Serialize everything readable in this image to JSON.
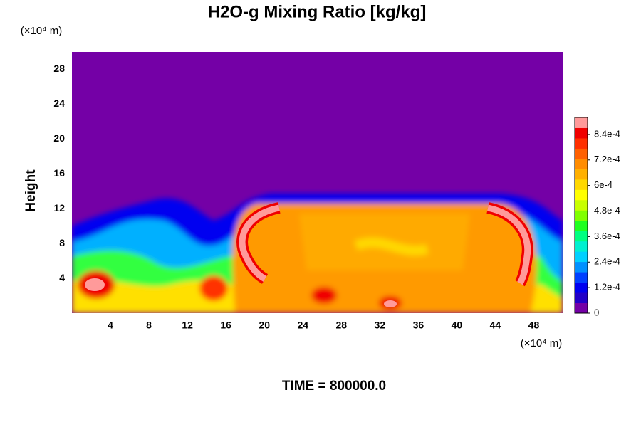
{
  "chart_data": {
    "type": "heatmap",
    "title": "H2O-g Mixing Ratio [kg/kg]",
    "x_label": "(×10⁴ m)",
    "y_label": "Height",
    "y_unit_label": "(×10⁴ m)",
    "footer": "TIME = 800000.0",
    "xlim": [
      0,
      51
    ],
    "xticks": [
      4,
      8,
      12,
      16,
      20,
      24,
      28,
      32,
      36,
      40,
      44,
      48
    ],
    "ylim": [
      0,
      30
    ],
    "yticks": [
      4,
      8,
      12,
      16,
      20,
      24,
      28
    ],
    "colorbar": {
      "lim": [
        0,
        0.00092
      ],
      "ticks": [
        0,
        {
          "value": 0.00012,
          "label": "1.2e-4"
        },
        {
          "value": 0.00024,
          "label": "2.4e-4"
        },
        {
          "value": 0.00036,
          "label": "3.6e-4"
        },
        {
          "value": 0.00048,
          "label": "4.8e-4"
        },
        {
          "value": 0.0006,
          "label": "6e-4"
        },
        {
          "value": 0.00072,
          "label": "7.2e-4"
        },
        {
          "value": 0.00084,
          "label": "8.4e-4"
        }
      ],
      "colors": [
        "#7400a6",
        "#2200c8",
        "#0000f0",
        "#0040ff",
        "#0090ff",
        "#00d0ff",
        "#00f0d0",
        "#00ff80",
        "#20ff20",
        "#80ff00",
        "#c8ff00",
        "#ffff00",
        "#ffd800",
        "#ffb000",
        "#ff8c00",
        "#ff6000",
        "#ff3000",
        "#f00000",
        "#ff9a9a"
      ]
    }
  }
}
